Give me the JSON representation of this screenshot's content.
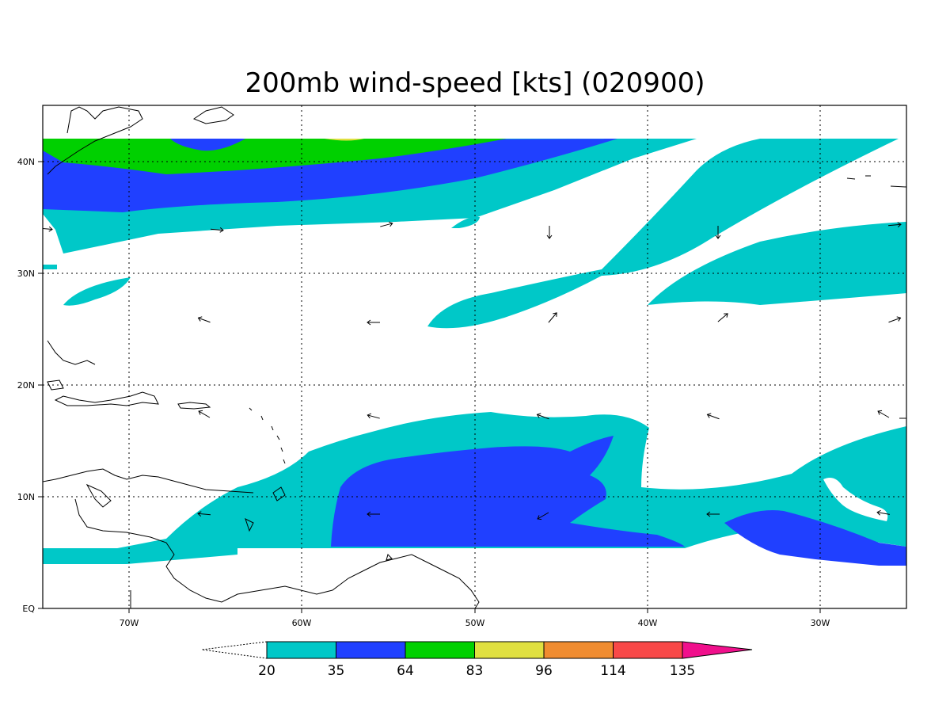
{
  "title": "200mb wind-speed [kts] (020900)",
  "colors": {
    "c20": "#00c8c8",
    "c35": "#2040ff",
    "c64": "#00d000",
    "c83": "#e0e040",
    "c96": "#f08c30",
    "c114": "#f84848",
    "c135": "#f0108c"
  },
  "axes": {
    "x_ticks": [
      "70W",
      "60W",
      "50W",
      "40W",
      "30W"
    ],
    "y_ticks": [
      "EQ",
      "10N",
      "20N",
      "30N",
      "40N"
    ]
  },
  "colorbar": {
    "labels": [
      "20",
      "35",
      "64",
      "83",
      "96",
      "114",
      "135"
    ]
  }
}
